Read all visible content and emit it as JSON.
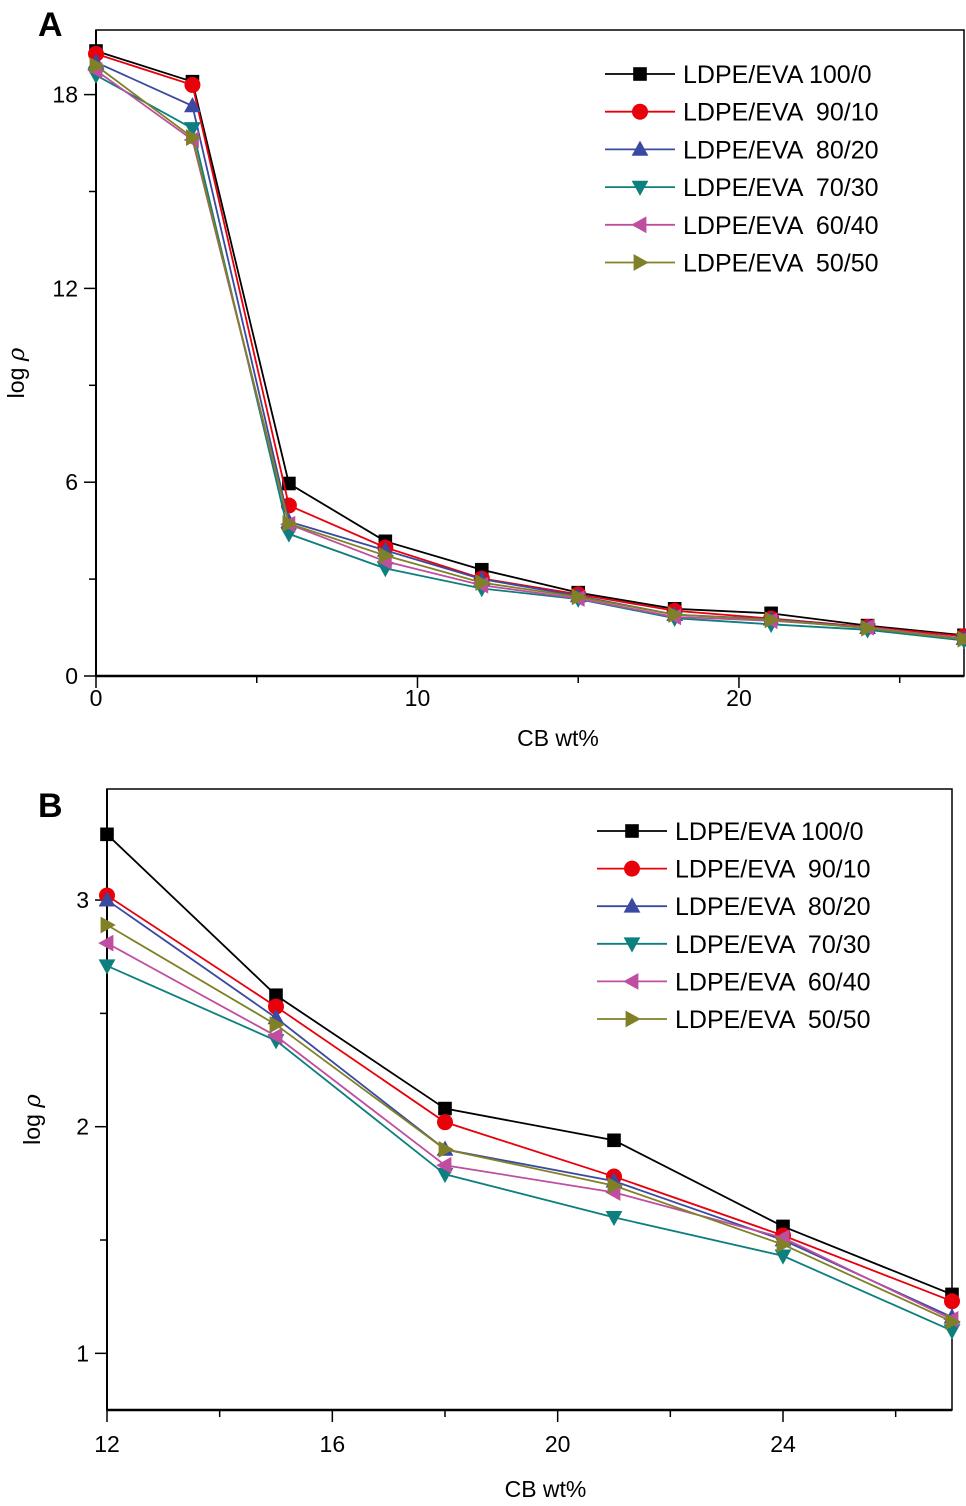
{
  "chart_data": [
    {
      "type": "line",
      "panel": "A",
      "title": "",
      "xlabel": "CB wt%",
      "ylabel": "log ρ",
      "ylabel_parts": [
        "log ",
        "ρ"
      ],
      "xlim": [
        0,
        27
      ],
      "ylim": [
        0,
        20
      ],
      "xticks": [
        0,
        10,
        20
      ],
      "xtick_labels": [
        "0",
        "10",
        "20"
      ],
      "x_minor_ticks": [
        5,
        15,
        25
      ],
      "yticks": [
        0,
        6,
        12,
        18
      ],
      "ytick_labels": [
        "0",
        "6",
        "12",
        "18"
      ],
      "y_minor_ticks": [
        3,
        9,
        15
      ],
      "grid": false,
      "legend_position": "top-right",
      "x": [
        0,
        3,
        6,
        9,
        12,
        15,
        18,
        21,
        24,
        27
      ],
      "series": [
        {
          "name": "LDPE/EVA 100/0",
          "label": "LDPE/EVA 100/0",
          "color": "#000000",
          "marker": "square",
          "values": [
            19.35,
            18.4,
            5.96,
            4.17,
            3.29,
            2.58,
            2.08,
            1.94,
            1.56,
            1.26
          ]
        },
        {
          "name": "LDPE/EVA 90/10",
          "label": "LDPE/EVA  90/10",
          "color": "#e8000b",
          "marker": "circle",
          "values": [
            19.26,
            18.3,
            5.28,
            3.98,
            3.02,
            2.53,
            2.02,
            1.78,
            1.52,
            1.23
          ]
        },
        {
          "name": "LDPE/EVA 80/20",
          "label": "LDPE/EVA  80/20",
          "color": "#3a4aa0",
          "marker": "triangle-up",
          "values": [
            19.0,
            17.65,
            4.78,
            3.89,
            3.0,
            2.48,
            1.9,
            1.76,
            1.5,
            1.16
          ]
        },
        {
          "name": "LDPE/EVA 70/30",
          "label": "LDPE/EVA  70/30",
          "color": "#0e7f7f",
          "marker": "triangle-down",
          "values": [
            18.6,
            16.95,
            4.4,
            3.33,
            2.71,
            2.38,
            1.79,
            1.6,
            1.43,
            1.1
          ]
        },
        {
          "name": "LDPE/EVA 60/40",
          "label": "LDPE/EVA  60/40",
          "color": "#c04ea0",
          "marker": "triangle-left",
          "values": [
            18.75,
            16.6,
            4.7,
            3.55,
            2.81,
            2.4,
            1.83,
            1.71,
            1.51,
            1.15
          ]
        },
        {
          "name": "LDPE/EVA 50/50",
          "label": "LDPE/EVA  50/50",
          "color": "#808026",
          "marker": "triangle-right",
          "values": [
            18.9,
            16.67,
            4.72,
            3.73,
            2.89,
            2.45,
            1.9,
            1.74,
            1.48,
            1.14
          ]
        }
      ]
    },
    {
      "type": "line",
      "panel": "B",
      "title": "",
      "xlabel": "CB wt%",
      "ylabel": "log ρ",
      "ylabel_parts": [
        "log ",
        "ρ"
      ],
      "xlim": [
        12,
        27
      ],
      "ylim": [
        0.75,
        3.49
      ],
      "xticks": [
        12,
        16,
        20,
        24
      ],
      "xtick_labels": [
        "12",
        "16",
        "20",
        "24"
      ],
      "x_minor_ticks": [
        14,
        18,
        22,
        26
      ],
      "yticks": [
        1,
        2,
        3
      ],
      "ytick_labels": [
        "1",
        "2",
        "3"
      ],
      "y_minor_ticks": [
        1.5,
        2.5
      ],
      "grid": false,
      "legend_position": "top-right",
      "x": [
        12,
        15,
        18,
        21,
        24,
        27
      ],
      "series": [
        {
          "name": "LDPE/EVA 100/0",
          "label": "LDPE/EVA 100/0",
          "color": "#000000",
          "marker": "square",
          "values": [
            3.29,
            2.58,
            2.08,
            1.94,
            1.56,
            1.26
          ]
        },
        {
          "name": "LDPE/EVA 90/10",
          "label": "LDPE/EVA  90/10",
          "color": "#e8000b",
          "marker": "circle",
          "values": [
            3.02,
            2.53,
            2.02,
            1.78,
            1.52,
            1.23
          ]
        },
        {
          "name": "LDPE/EVA 80/20",
          "label": "LDPE/EVA  80/20",
          "color": "#3a4aa0",
          "marker": "triangle-up",
          "values": [
            3.0,
            2.48,
            1.9,
            1.76,
            1.5,
            1.16
          ]
        },
        {
          "name": "LDPE/EVA 70/30",
          "label": "LDPE/EVA  70/30",
          "color": "#0e7f7f",
          "marker": "triangle-down",
          "values": [
            2.71,
            2.38,
            1.79,
            1.6,
            1.43,
            1.1
          ]
        },
        {
          "name": "LDPE/EVA 60/40",
          "label": "LDPE/EVA  60/40",
          "color": "#c04ea0",
          "marker": "triangle-left",
          "values": [
            2.81,
            2.4,
            1.83,
            1.71,
            1.51,
            1.15
          ]
        },
        {
          "name": "LDPE/EVA 50/50",
          "label": "LDPE/EVA  50/50",
          "color": "#808026",
          "marker": "triangle-right",
          "values": [
            2.89,
            2.45,
            1.9,
            1.74,
            1.48,
            1.14
          ]
        }
      ]
    }
  ]
}
